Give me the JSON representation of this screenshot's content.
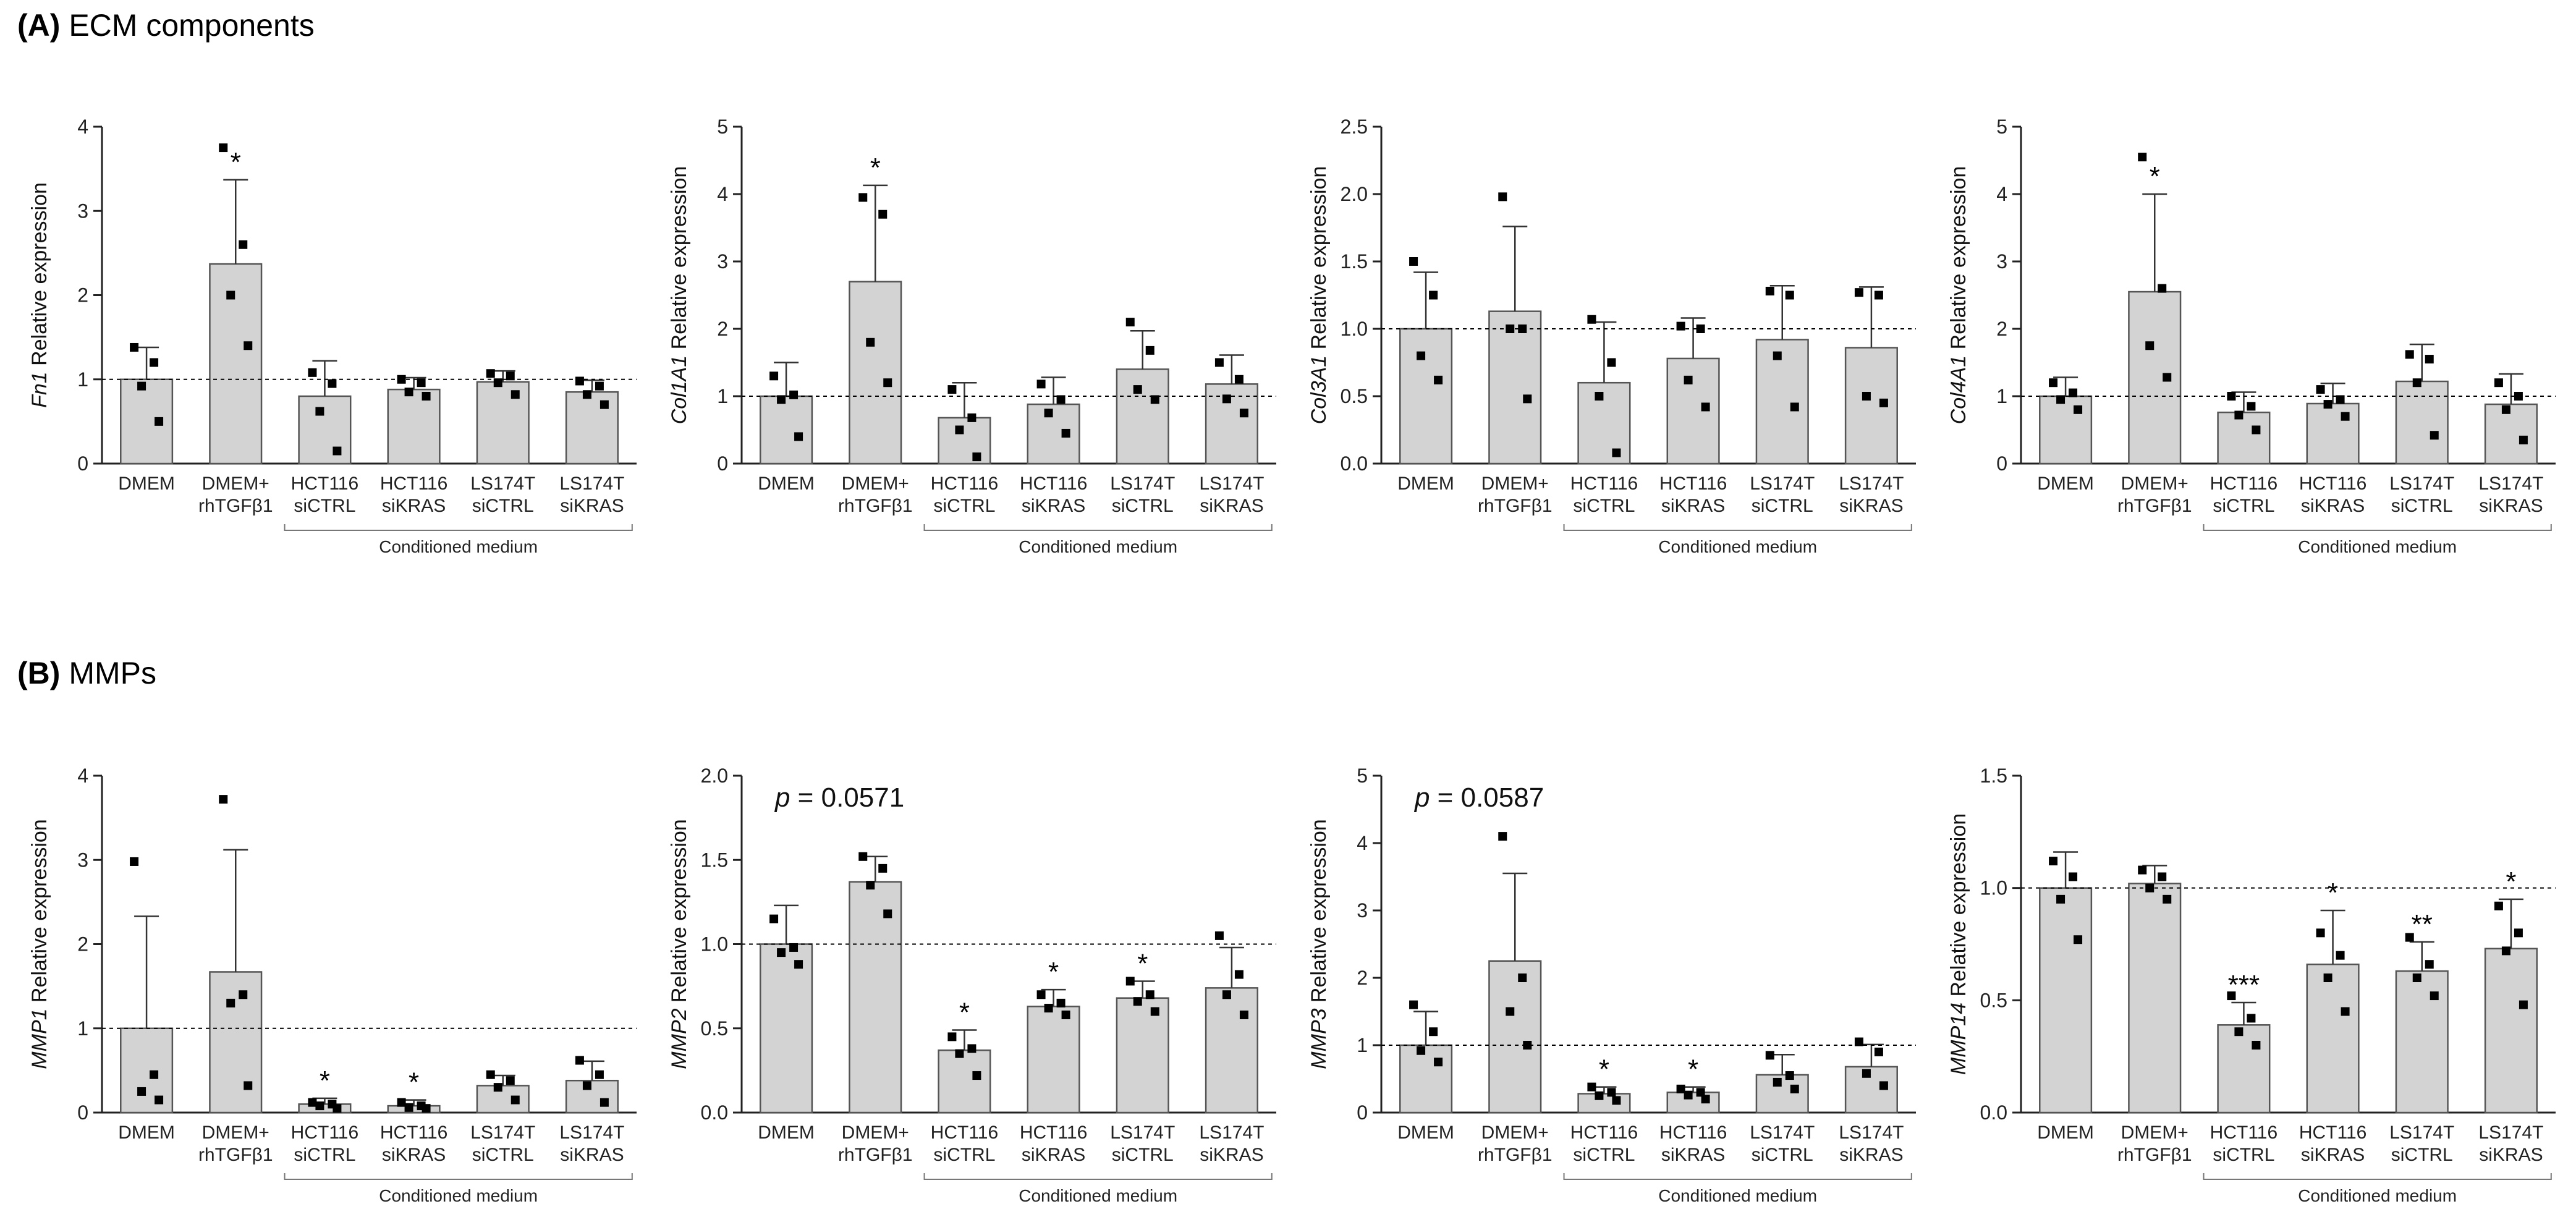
{
  "sections": [
    {
      "letter": "(A)",
      "title": "ECM components"
    },
    {
      "letter": "(B)",
      "title": "MMPs"
    }
  ],
  "colors": {
    "bar_fill": "#d3d3d3",
    "bar_stroke": "#555555",
    "point": "#000000",
    "reference_line": "#000000"
  },
  "chart_data": [
    {
      "type": "bar",
      "section": 0,
      "ylabel_gene": "Fn1",
      "ylabel_rest": " Relative expression",
      "categories": [
        [
          "DMEM"
        ],
        [
          "DMEM+",
          "rhTGFβ1"
        ],
        [
          "HCT116",
          "siCTRL"
        ],
        [
          "HCT116",
          "siKRAS"
        ],
        [
          "LS174T",
          "siCTRL"
        ],
        [
          "LS174T",
          "siKRAS"
        ]
      ],
      "group_label": "Conditioned medium",
      "ylim": [
        0,
        4
      ],
      "yticks": [
        "0",
        "1",
        "2",
        "3",
        "4"
      ],
      "reference_y": 1,
      "values": [
        1.0,
        2.37,
        0.8,
        0.88,
        0.97,
        0.85
      ],
      "errors": [
        0.38,
        1.0,
        0.42,
        0.14,
        0.13,
        0.14
      ],
      "points": [
        [
          1.38,
          1.2,
          0.92,
          0.5
        ],
        [
          3.75,
          2.6,
          2.0,
          1.4
        ],
        [
          1.08,
          0.95,
          0.62,
          0.15
        ],
        [
          1.0,
          0.96,
          0.85,
          0.8
        ],
        [
          1.07,
          1.04,
          0.96,
          0.82
        ],
        [
          0.98,
          0.92,
          0.82,
          0.7
        ]
      ],
      "annotations": [
        "",
        "*",
        "",
        "",
        "",
        ""
      ],
      "note": ""
    },
    {
      "type": "bar",
      "section": 0,
      "ylabel_gene": "Col1A1",
      "ylabel_rest": " Relative expression",
      "categories": [
        [
          "DMEM"
        ],
        [
          "DMEM+",
          "rhTGFβ1"
        ],
        [
          "HCT116",
          "siCTRL"
        ],
        [
          "HCT116",
          "siKRAS"
        ],
        [
          "LS174T",
          "siCTRL"
        ],
        [
          "LS174T",
          "siKRAS"
        ]
      ],
      "group_label": "Conditioned medium",
      "ylim": [
        0,
        5
      ],
      "yticks": [
        "0",
        "1",
        "2",
        "3",
        "4",
        "5"
      ],
      "reference_y": 1,
      "values": [
        1.0,
        2.7,
        0.68,
        0.88,
        1.4,
        1.18
      ],
      "errors": [
        0.5,
        1.43,
        0.52,
        0.4,
        0.57,
        0.43
      ],
      "points": [
        [
          1.3,
          1.02,
          0.95,
          0.4
        ],
        [
          3.95,
          3.7,
          1.8,
          1.2
        ],
        [
          1.1,
          0.68,
          0.5,
          0.1
        ],
        [
          1.18,
          0.95,
          0.75,
          0.45
        ],
        [
          2.1,
          1.68,
          1.1,
          0.95
        ],
        [
          1.5,
          1.25,
          0.96,
          0.75
        ]
      ],
      "annotations": [
        "",
        "*",
        "",
        "",
        "",
        ""
      ],
      "note": ""
    },
    {
      "type": "bar",
      "section": 0,
      "ylabel_gene": "Col3A1",
      "ylabel_rest": " Relative expression",
      "categories": [
        [
          "DMEM"
        ],
        [
          "DMEM+",
          "rhTGFβ1"
        ],
        [
          "HCT116",
          "siCTRL"
        ],
        [
          "HCT116",
          "siKRAS"
        ],
        [
          "LS174T",
          "siCTRL"
        ],
        [
          "LS174T",
          "siKRAS"
        ]
      ],
      "group_label": "Conditioned medium",
      "ylim": [
        0,
        2.5
      ],
      "yticks": [
        "0.0",
        "0.5",
        "1.0",
        "1.5",
        "2.0",
        "2.5"
      ],
      "reference_y": 1,
      "values": [
        1.0,
        1.13,
        0.6,
        0.78,
        0.92,
        0.86
      ],
      "errors": [
        0.42,
        0.63,
        0.45,
        0.3,
        0.4,
        0.45
      ],
      "points": [
        [
          1.5,
          1.25,
          0.8,
          0.62
        ],
        [
          1.98,
          1.0,
          1.0,
          0.48
        ],
        [
          1.07,
          0.75,
          0.5,
          0.08
        ],
        [
          1.02,
          1.0,
          0.62,
          0.42
        ],
        [
          1.28,
          1.25,
          0.8,
          0.42
        ],
        [
          1.27,
          1.25,
          0.5,
          0.45
        ]
      ],
      "annotations": [
        "",
        "",
        "",
        "",
        "",
        ""
      ],
      "note": ""
    },
    {
      "type": "bar",
      "section": 0,
      "ylabel_gene": "Col4A1",
      "ylabel_rest": " Relative expression",
      "categories": [
        [
          "DMEM"
        ],
        [
          "DMEM+",
          "rhTGFβ1"
        ],
        [
          "HCT116",
          "siCTRL"
        ],
        [
          "HCT116",
          "siKRAS"
        ],
        [
          "LS174T",
          "siCTRL"
        ],
        [
          "LS174T",
          "siKRAS"
        ]
      ],
      "group_label": "Conditioned medium",
      "ylim": [
        0,
        5
      ],
      "yticks": [
        "0",
        "1",
        "2",
        "3",
        "4",
        "5"
      ],
      "reference_y": 1,
      "values": [
        1.0,
        2.55,
        0.76,
        0.89,
        1.22,
        0.88
      ],
      "errors": [
        0.28,
        1.45,
        0.3,
        0.3,
        0.55,
        0.45
      ],
      "points": [
        [
          1.2,
          1.05,
          0.95,
          0.8
        ],
        [
          4.55,
          2.6,
          1.75,
          1.28
        ],
        [
          1.0,
          0.85,
          0.72,
          0.5
        ],
        [
          1.1,
          0.95,
          0.88,
          0.7
        ],
        [
          1.62,
          1.55,
          1.2,
          0.42
        ],
        [
          1.2,
          1.0,
          0.8,
          0.35
        ]
      ],
      "annotations": [
        "",
        "*",
        "",
        "",
        "",
        ""
      ],
      "note": ""
    },
    {
      "type": "bar",
      "section": 1,
      "ylabel_gene": "MMP1",
      "ylabel_rest": " Relative expression",
      "categories": [
        [
          "DMEM"
        ],
        [
          "DMEM+",
          "rhTGFβ1"
        ],
        [
          "HCT116",
          "siCTRL"
        ],
        [
          "HCT116",
          "siKRAS"
        ],
        [
          "LS174T",
          "siCTRL"
        ],
        [
          "LS174T",
          "siKRAS"
        ]
      ],
      "group_label": "Conditioned medium",
      "ylim": [
        0,
        4
      ],
      "yticks": [
        "0",
        "1",
        "2",
        "3",
        "4"
      ],
      "reference_y": 1,
      "values": [
        1.0,
        1.67,
        0.1,
        0.08,
        0.32,
        0.38
      ],
      "errors": [
        1.33,
        1.45,
        0.07,
        0.07,
        0.12,
        0.23
      ],
      "points": [
        [
          2.98,
          0.45,
          0.25,
          0.15
        ],
        [
          3.72,
          1.4,
          1.3,
          0.32
        ],
        [
          0.12,
          0.1,
          0.08,
          0.05
        ],
        [
          0.12,
          0.08,
          0.06,
          0.05
        ],
        [
          0.45,
          0.38,
          0.3,
          0.15
        ],
        [
          0.62,
          0.45,
          0.32,
          0.12
        ]
      ],
      "annotations": [
        "",
        "",
        "*",
        "*",
        "",
        ""
      ],
      "note": ""
    },
    {
      "type": "bar",
      "section": 1,
      "ylabel_gene": "MMP2",
      "ylabel_rest": " Relative expression",
      "categories": [
        [
          "DMEM"
        ],
        [
          "DMEM+",
          "rhTGFβ1"
        ],
        [
          "HCT116",
          "siCTRL"
        ],
        [
          "HCT116",
          "siKRAS"
        ],
        [
          "LS174T",
          "siCTRL"
        ],
        [
          "LS174T",
          "siKRAS"
        ]
      ],
      "group_label": "Conditioned medium",
      "ylim": [
        0,
        2.0
      ],
      "yticks": [
        "0.0",
        "0.5",
        "1.0",
        "1.5",
        "2.0"
      ],
      "reference_y": 1,
      "values": [
        1.0,
        1.37,
        0.37,
        0.63,
        0.68,
        0.74
      ],
      "errors": [
        0.23,
        0.15,
        0.12,
        0.1,
        0.1,
        0.24
      ],
      "points": [
        [
          1.15,
          0.98,
          0.95,
          0.88
        ],
        [
          1.52,
          1.45,
          1.35,
          1.18
        ],
        [
          0.45,
          0.38,
          0.35,
          0.22
        ],
        [
          0.7,
          0.65,
          0.62,
          0.58
        ],
        [
          0.78,
          0.7,
          0.66,
          0.6
        ],
        [
          1.05,
          0.82,
          0.7,
          0.58
        ]
      ],
      "annotations": [
        "",
        "",
        "*",
        "*",
        "*",
        ""
      ],
      "note_prefix": "p",
      "note": " = 0.0571"
    },
    {
      "type": "bar",
      "section": 1,
      "ylabel_gene": "MMP3",
      "ylabel_rest": " Relative expression",
      "categories": [
        [
          "DMEM"
        ],
        [
          "DMEM+",
          "rhTGFβ1"
        ],
        [
          "HCT116",
          "siCTRL"
        ],
        [
          "HCT116",
          "siKRAS"
        ],
        [
          "LS174T",
          "siCTRL"
        ],
        [
          "LS174T",
          "siKRAS"
        ]
      ],
      "group_label": "Conditioned medium",
      "ylim": [
        0,
        5
      ],
      "yticks": [
        "0",
        "1",
        "2",
        "3",
        "4",
        "5"
      ],
      "reference_y": 1,
      "values": [
        1.0,
        2.25,
        0.28,
        0.3,
        0.56,
        0.68
      ],
      "errors": [
        0.5,
        1.3,
        0.1,
        0.08,
        0.3,
        0.33
      ],
      "points": [
        [
          1.6,
          1.2,
          0.92,
          0.75
        ],
        [
          4.1,
          2.0,
          1.5,
          1.0
        ],
        [
          0.38,
          0.3,
          0.25,
          0.18
        ],
        [
          0.35,
          0.3,
          0.26,
          0.2
        ],
        [
          0.85,
          0.55,
          0.45,
          0.35
        ],
        [
          1.05,
          0.9,
          0.58,
          0.4
        ]
      ],
      "annotations": [
        "",
        "",
        "*",
        "*",
        "",
        ""
      ],
      "note_prefix": "p",
      "note": " = 0.0587"
    },
    {
      "type": "bar",
      "section": 1,
      "ylabel_gene": "MMP14",
      "ylabel_rest": " Relative expression",
      "categories": [
        [
          "DMEM"
        ],
        [
          "DMEM+",
          "rhTGFβ1"
        ],
        [
          "HCT116",
          "siCTRL"
        ],
        [
          "HCT116",
          "siKRAS"
        ],
        [
          "LS174T",
          "siCTRL"
        ],
        [
          "LS174T",
          "siKRAS"
        ]
      ],
      "group_label": "Conditioned medium",
      "ylim": [
        0,
        1.5
      ],
      "yticks": [
        "0.0",
        "0.5",
        "1.0",
        "1.5"
      ],
      "reference_y": 1,
      "values": [
        1.0,
        1.02,
        0.39,
        0.66,
        0.63,
        0.73
      ],
      "errors": [
        0.16,
        0.08,
        0.1,
        0.24,
        0.13,
        0.22
      ],
      "points": [
        [
          1.12,
          1.05,
          0.95,
          0.77
        ],
        [
          1.08,
          1.05,
          1.0,
          0.95
        ],
        [
          0.52,
          0.42,
          0.36,
          0.3
        ],
        [
          0.8,
          0.7,
          0.6,
          0.45
        ],
        [
          0.78,
          0.66,
          0.6,
          0.52
        ],
        [
          0.92,
          0.8,
          0.72,
          0.48
        ]
      ],
      "annotations": [
        "",
        "",
        "***",
        "*",
        "**",
        "*"
      ],
      "note": ""
    }
  ]
}
